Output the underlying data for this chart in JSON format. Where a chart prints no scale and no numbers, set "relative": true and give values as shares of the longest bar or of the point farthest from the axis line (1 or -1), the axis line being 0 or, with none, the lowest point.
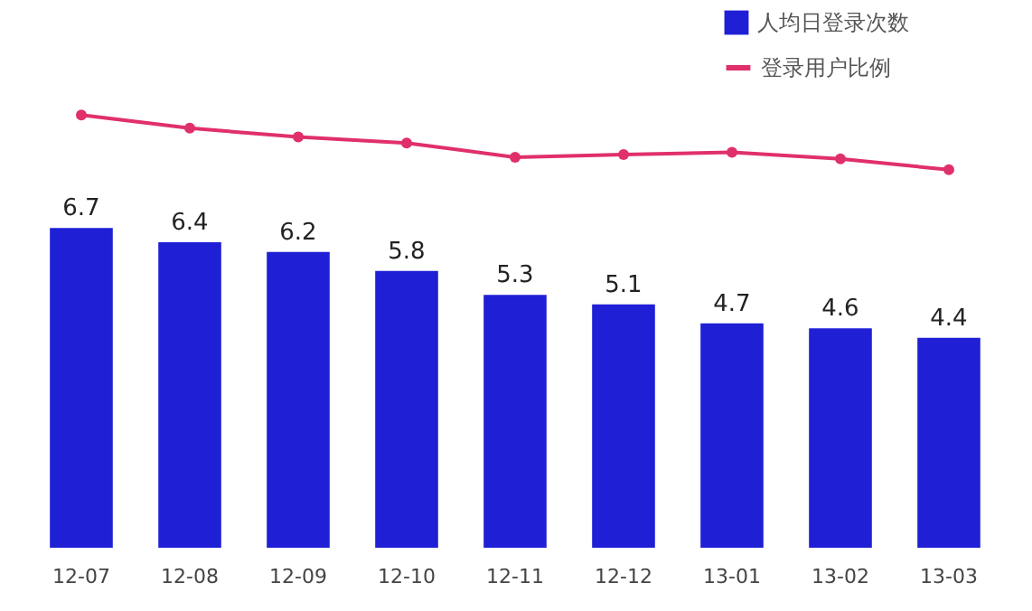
{
  "chart_data": [
    {
      "type": "line",
      "relative": true,
      "categories": [
        null,
        null,
        null,
        null,
        null,
        null,
        null,
        null,
        null
      ],
      "series": [
        {
          "name": "登录用户比例",
          "color": "#e0306a",
          "values": [
            1,
            0.76,
            0.6,
            0.49,
            0.23,
            0.28,
            0.32,
            0.2,
            0
          ]
        }
      ],
      "legend": "top right",
      "marker": "circle",
      "line_style": "solid"
    },
    {
      "type": "bar",
      "categories": [
        "12-07",
        "12-08",
        "12-09",
        "12-10",
        "12-11",
        "12-12",
        "13-01",
        "13-02",
        "13-03"
      ],
      "series": [
        {
          "name": "人均日登录次数",
          "color": "#1f1fd6",
          "values": [
            6.7,
            6.4,
            6.2,
            5.8,
            5.3,
            5.1,
            4.7,
            4.6,
            4.4
          ]
        }
      ],
      "data_labels": true,
      "legend": "top right",
      "tick_labels": "x"
    }
  ]
}
